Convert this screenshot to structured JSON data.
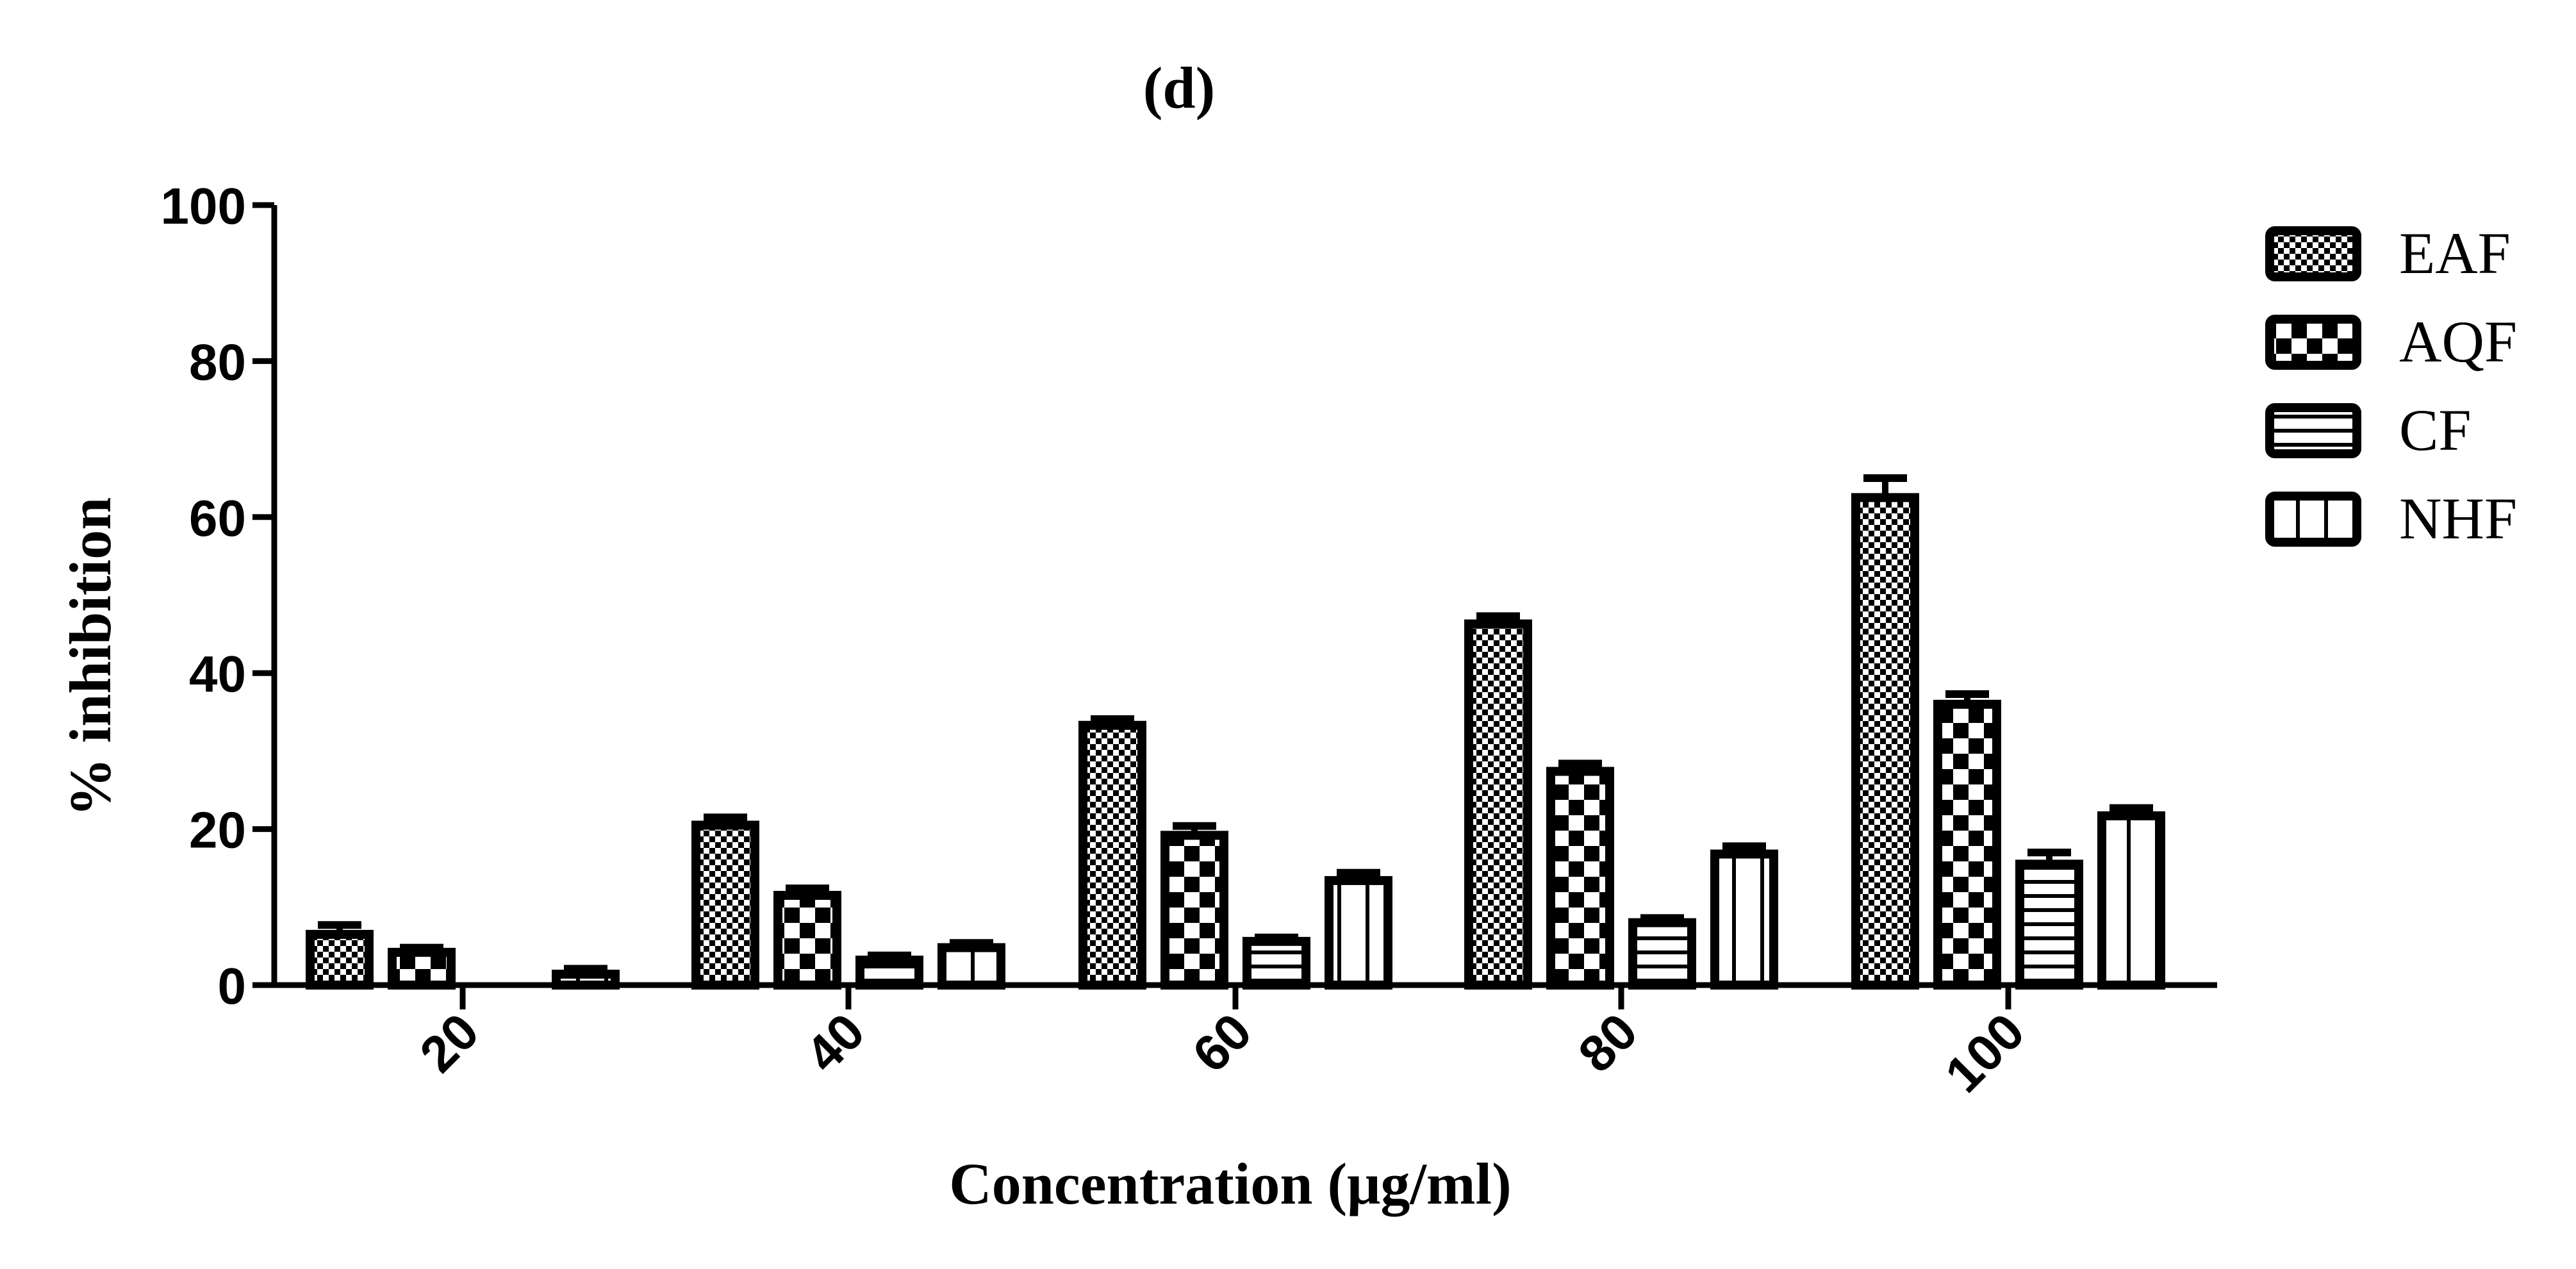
{
  "chart_data": {
    "type": "bar",
    "title": "(d)",
    "xlabel": "Concentration (μg/ml)",
    "ylabel": "% inhibition",
    "categories": [
      "20",
      "40",
      "60",
      "80",
      "100"
    ],
    "ylim": [
      0,
      100
    ],
    "yticks": [
      "0",
      "20",
      "40",
      "60",
      "80",
      "100"
    ],
    "legend_position": "right",
    "error_bars": true,
    "series": [
      {
        "name": "EAF",
        "pattern": "fine-checker",
        "values": [
          6.5,
          20.5,
          33.3,
          46.3,
          62.5
        ],
        "errors": [
          1.2,
          1.0,
          0.8,
          1.0,
          2.5
        ]
      },
      {
        "name": "AQF",
        "pattern": "coarse-checker",
        "values": [
          4.2,
          11.5,
          19.2,
          27.4,
          36.0
        ],
        "errors": [
          0.6,
          0.9,
          1.2,
          1.0,
          1.3
        ]
      },
      {
        "name": "CF",
        "pattern": "horizontal-lines",
        "values": [
          0,
          3.2,
          5.6,
          8.0,
          15.5
        ],
        "errors": [
          0,
          0.6,
          0.5,
          0.6,
          1.5
        ]
      },
      {
        "name": "NHF",
        "pattern": "vertical-lines",
        "values": [
          1.4,
          4.8,
          13.4,
          16.8,
          21.7
        ],
        "errors": [
          0.7,
          0.6,
          1.0,
          1.0,
          1.0
        ]
      }
    ]
  }
}
